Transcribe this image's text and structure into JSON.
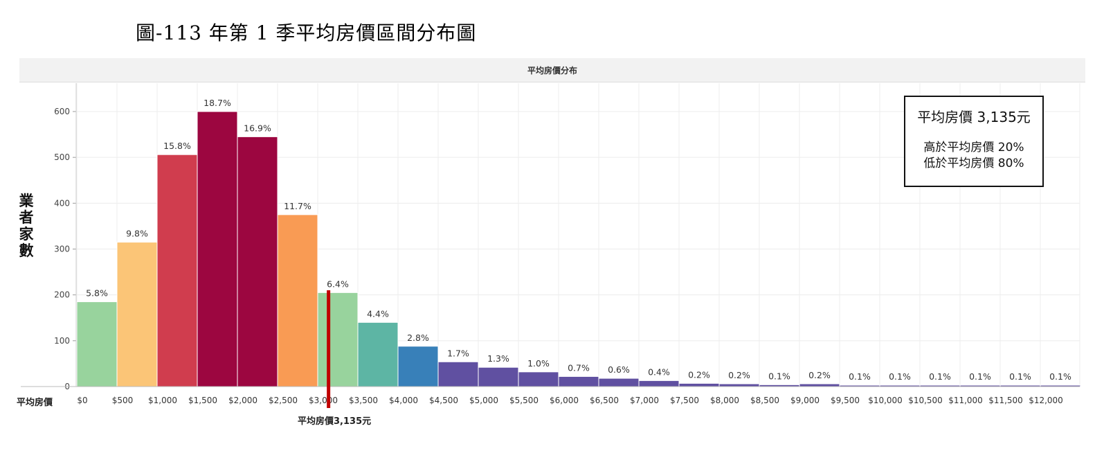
{
  "figure_title": "圖-113 年第 1 季平均房價區間分布圖",
  "panel_title": "平均房價分布",
  "infobox": {
    "average": "平均房價 3,135元",
    "above": "高於平均房價 20%",
    "below": "低於平均房價 80%"
  },
  "mean_line_label": "平均房價3,135元",
  "colors": {
    "light_green": "#98d39d",
    "light_orange": "#fbc577",
    "red": "#d03d4e",
    "crimson": "#9c0640",
    "orange": "#f99b54",
    "teal": "#5db5a4",
    "blue": "#3880b9",
    "purple": "#6050a1",
    "mean_line": "#c00000"
  },
  "chart_data": {
    "type": "bar",
    "title": "平均房價分布",
    "xlabel": "平均房價",
    "ylabel": "業者家數",
    "x_ticks": [
      "$0",
      "$500",
      "$1,000",
      "$1,500",
      "$2,000",
      "$2,500",
      "$3,000",
      "$3,500",
      "$4,000",
      "$4,500",
      "$5,000",
      "$5,500",
      "$6,000",
      "$6,500",
      "$7,000",
      "$7,500",
      "$8,000",
      "$8,500",
      "$9,000",
      "$9,500",
      "$10,000",
      "$10,500",
      "$11,000",
      "$11,500",
      "$12,000"
    ],
    "y_ticks": [
      0,
      100,
      200,
      300,
      400,
      500,
      600
    ],
    "ylim": [
      0,
      600
    ],
    "bin_width": 500,
    "mean": 3135,
    "grid": true,
    "bars": [
      {
        "bin_start": 0,
        "value": 185,
        "label": "5.8%",
        "color": "light_green"
      },
      {
        "bin_start": 500,
        "value": 315,
        "label": "9.8%",
        "color": "light_orange"
      },
      {
        "bin_start": 1000,
        "value": 506,
        "label": "15.8%",
        "color": "red"
      },
      {
        "bin_start": 1500,
        "value": 600,
        "label": "18.7%",
        "color": "crimson"
      },
      {
        "bin_start": 2000,
        "value": 545,
        "label": "16.9%",
        "color": "crimson"
      },
      {
        "bin_start": 2500,
        "value": 375,
        "label": "11.7%",
        "color": "orange"
      },
      {
        "bin_start": 3000,
        "value": 205,
        "label": "6.4%",
        "color": "light_green"
      },
      {
        "bin_start": 3500,
        "value": 140,
        "label": "4.4%",
        "color": "teal"
      },
      {
        "bin_start": 4000,
        "value": 88,
        "label": "2.8%",
        "color": "blue"
      },
      {
        "bin_start": 4500,
        "value": 54,
        "label": "1.7%",
        "color": "purple"
      },
      {
        "bin_start": 5000,
        "value": 42,
        "label": "1.3%",
        "color": "purple"
      },
      {
        "bin_start": 5500,
        "value": 32,
        "label": "1.0%",
        "color": "purple"
      },
      {
        "bin_start": 6000,
        "value": 22,
        "label": "0.7%",
        "color": "purple"
      },
      {
        "bin_start": 6500,
        "value": 18,
        "label": "0.6%",
        "color": "purple"
      },
      {
        "bin_start": 7000,
        "value": 13,
        "label": "0.4%",
        "color": "purple"
      },
      {
        "bin_start": 7500,
        "value": 7,
        "label": "0.2%",
        "color": "purple"
      },
      {
        "bin_start": 8000,
        "value": 6,
        "label": "0.2%",
        "color": "purple"
      },
      {
        "bin_start": 8500,
        "value": 4,
        "label": "0.1%",
        "color": "purple"
      },
      {
        "bin_start": 9000,
        "value": 6,
        "label": "0.2%",
        "color": "purple"
      },
      {
        "bin_start": 9500,
        "value": 3,
        "label": "0.1%",
        "color": "purple"
      },
      {
        "bin_start": 10000,
        "value": 3,
        "label": "0.1%",
        "color": "purple"
      },
      {
        "bin_start": 10500,
        "value": 3,
        "label": "0.1%",
        "color": "purple"
      },
      {
        "bin_start": 11000,
        "value": 3,
        "label": "0.1%",
        "color": "purple"
      },
      {
        "bin_start": 11500,
        "value": 3,
        "label": "0.1%",
        "color": "purple"
      },
      {
        "bin_start": 12000,
        "value": 3,
        "label": "0.1%",
        "color": "purple"
      }
    ]
  }
}
